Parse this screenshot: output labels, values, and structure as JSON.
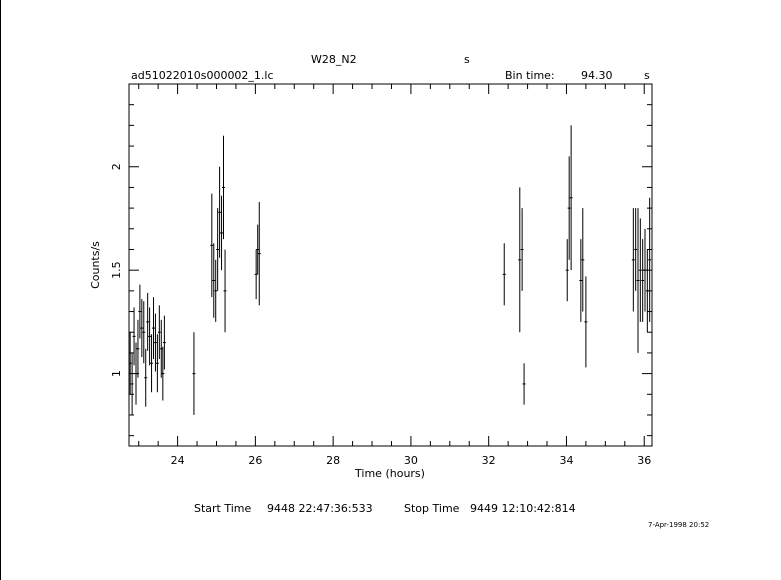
{
  "header": {
    "object": "W28_N2",
    "object_unit": "s",
    "file": "ad51022010s000002_1.lc",
    "bin_label": "Bin time:",
    "bin_value": "94.30",
    "bin_unit": "s"
  },
  "footer": {
    "start_label": "Start Time",
    "start_value": "9448 22:47:36:533",
    "stop_label": "Stop Time",
    "stop_value": "9449 12:10:42:814",
    "date_stamp": "7-Apr-1998 20:52"
  },
  "chart_data": {
    "type": "scatter",
    "xlabel": "Time (hours)",
    "ylabel": "Counts/s",
    "xlim": [
      22.75,
      36.2
    ],
    "ylim": [
      0.65,
      2.4
    ],
    "xticks": [
      24,
      26,
      28,
      30,
      32,
      34,
      36
    ],
    "yticks": [
      1,
      1.5,
      2
    ],
    "xtick_labels": [
      "24",
      "26",
      "28",
      "30",
      "32",
      "34",
      "36"
    ],
    "ytick_labels": [
      "1",
      "1.5",
      "2"
    ],
    "grid": false,
    "series": [
      {
        "points": [
          [
            22.78,
            1.05,
            0.15
          ],
          [
            22.83,
            0.95,
            0.15
          ],
          [
            22.88,
            1.18,
            0.14
          ],
          [
            22.93,
            1.0,
            0.15
          ],
          [
            22.98,
            1.12,
            0.14
          ],
          [
            23.03,
            1.3,
            0.13
          ],
          [
            23.08,
            1.22,
            0.14
          ],
          [
            23.13,
            1.2,
            0.15
          ],
          [
            23.18,
            0.98,
            0.14
          ],
          [
            23.23,
            1.25,
            0.14
          ],
          [
            23.28,
            1.18,
            0.14
          ],
          [
            23.33,
            1.05,
            0.14
          ],
          [
            23.38,
            1.22,
            0.15
          ],
          [
            23.43,
            1.15,
            0.14
          ],
          [
            23.48,
            1.05,
            0.14
          ],
          [
            23.53,
            1.2,
            0.13
          ],
          [
            23.58,
            1.12,
            0.14
          ],
          [
            23.62,
            1.0,
            0.13
          ],
          [
            23.66,
            1.15,
            0.13
          ],
          [
            24.42,
            1.0,
            0.2
          ],
          [
            24.88,
            1.62,
            0.25
          ],
          [
            24.93,
            1.45,
            0.18
          ],
          [
            24.98,
            1.4,
            0.15
          ],
          [
            25.03,
            1.6,
            0.2
          ],
          [
            25.08,
            1.78,
            0.22
          ],
          [
            25.13,
            1.68,
            0.18
          ],
          [
            25.18,
            1.9,
            0.25
          ],
          [
            25.22,
            1.4,
            0.2
          ],
          [
            26.02,
            1.48,
            0.12
          ],
          [
            26.06,
            1.6,
            0.12
          ],
          [
            26.1,
            1.58,
            0.25
          ],
          [
            32.4,
            1.48,
            0.15
          ],
          [
            32.8,
            1.55,
            0.35
          ],
          [
            32.86,
            1.6,
            0.2
          ],
          [
            32.91,
            0.95,
            0.1
          ],
          [
            34.02,
            1.5,
            0.15
          ],
          [
            34.07,
            1.8,
            0.25
          ],
          [
            34.12,
            1.85,
            0.35
          ],
          [
            34.37,
            1.45,
            0.2
          ],
          [
            34.42,
            1.55,
            0.25
          ],
          [
            34.5,
            1.25,
            0.22
          ],
          [
            35.72,
            1.55,
            0.25
          ],
          [
            35.78,
            1.6,
            0.2
          ],
          [
            35.84,
            1.45,
            0.35
          ],
          [
            35.9,
            1.5,
            0.25
          ],
          [
            35.96,
            1.45,
            0.2
          ],
          [
            36.02,
            1.5,
            0.2
          ],
          [
            36.08,
            1.4,
            0.2
          ],
          [
            36.14,
            1.55,
            0.3
          ]
        ]
      }
    ]
  }
}
